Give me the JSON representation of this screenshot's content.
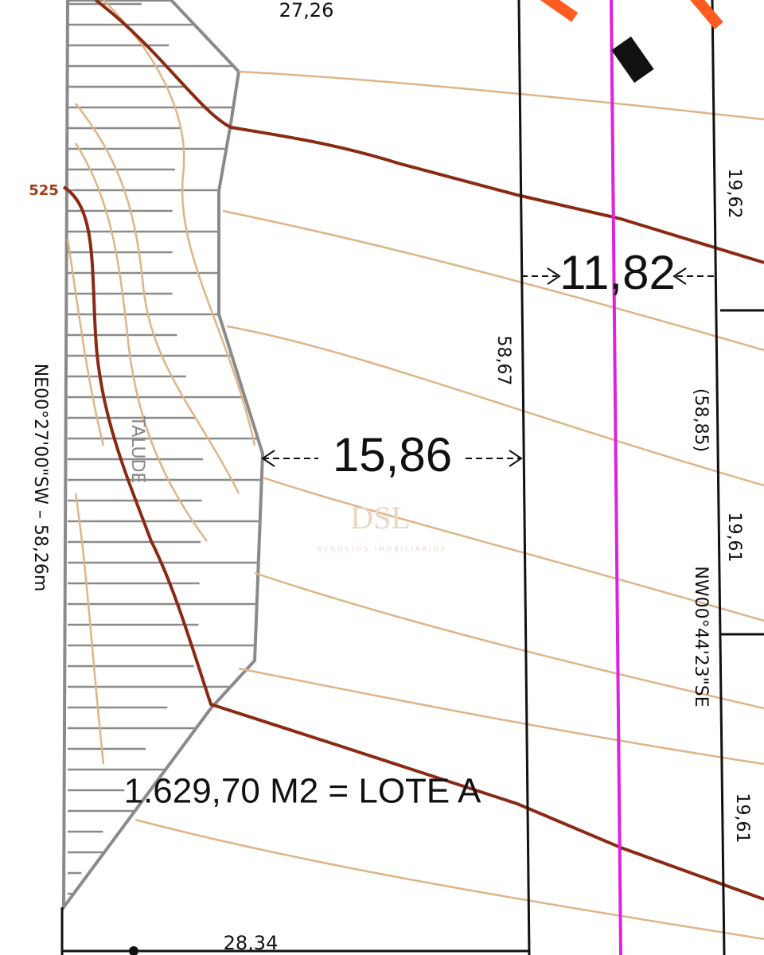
{
  "top_dimension": "27,26",
  "bottom_dimension": "28,34",
  "contour_label": "525",
  "west_bearing": "NE00°27'00\"SW – 58,26m",
  "slope_label": "TALUDE",
  "setback_dimension": "15,86",
  "lot_side_length": "58,67",
  "strip_width": "11,82",
  "east_segments": [
    "19,62",
    "19,61",
    "19,61"
  ],
  "east_total": "(58,85)",
  "east_bearing": "NW00°44'23\"SE",
  "area_label": "1.629,70 M2 = LOTE A",
  "watermark": {
    "logo": "DSL",
    "tagline": "NEGÓCIOS IMOBILIÁRIOS"
  }
}
